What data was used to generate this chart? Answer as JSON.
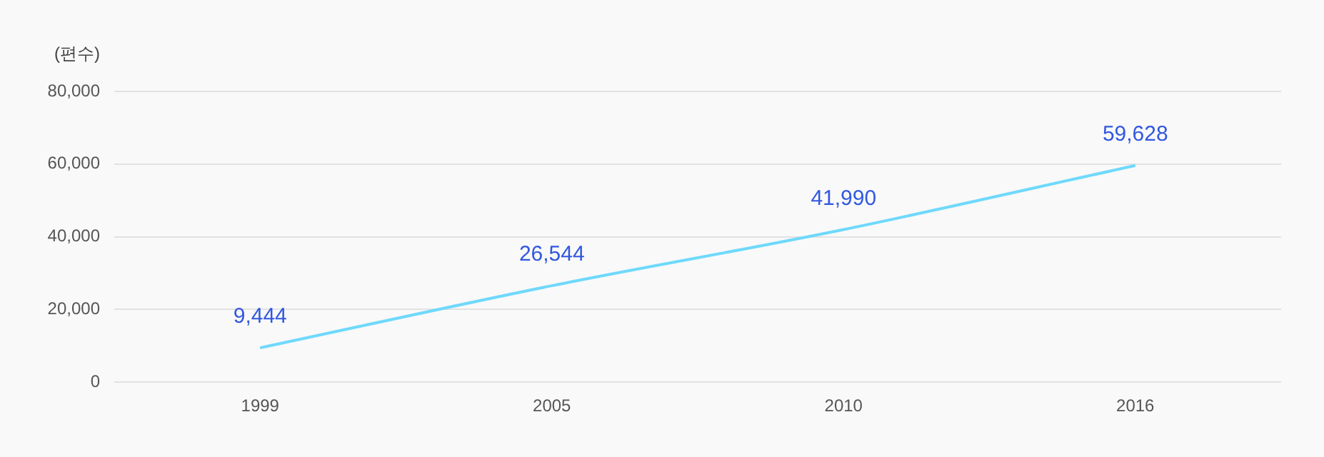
{
  "chart_data": {
    "type": "line",
    "ylabel": "(편수)",
    "categories": [
      "1999",
      "2005",
      "2010",
      "2016"
    ],
    "series": [
      {
        "color": "#6fd9fb",
        "values": [
          9444,
          26544,
          41990,
          59628
        ]
      }
    ],
    "ylim": [
      0,
      80000
    ],
    "yticks": [
      {
        "value": 0,
        "label": "0"
      },
      {
        "value": 20000,
        "label": "20,000"
      },
      {
        "value": 40000,
        "label": "40,000"
      },
      {
        "value": 60000,
        "label": "60,000"
      },
      {
        "value": 80000,
        "label": "80,000"
      }
    ],
    "grid": "y",
    "legend": false,
    "marker": "none",
    "line_style": "solid",
    "value_labels": [
      "9,444",
      "26,544",
      "41,990",
      "59,628"
    ]
  }
}
